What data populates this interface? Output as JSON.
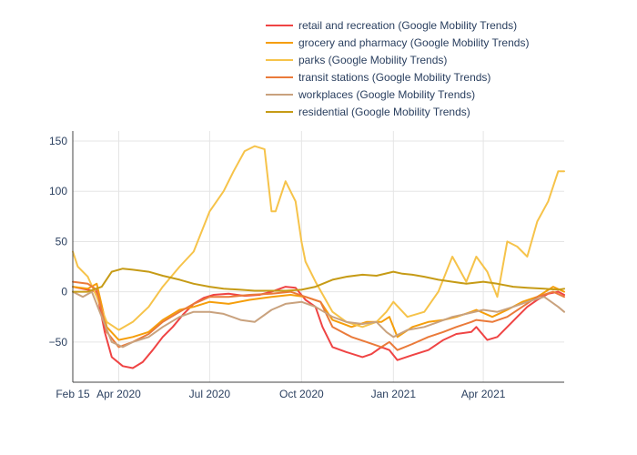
{
  "chart_data": {
    "type": "line",
    "title": "",
    "xlabel": "",
    "ylabel": "",
    "ylim": [
      -90,
      160
    ],
    "yticks": [
      150,
      100,
      50,
      0,
      -50
    ],
    "ytick_labels": [
      "150",
      "100",
      "50",
      "0",
      "−50"
    ],
    "xlim": [
      "2020-02-15",
      "2021-06-21"
    ],
    "xticks": [
      "2020-02-15",
      "2020-04-01",
      "2020-07-01",
      "2020-10-01",
      "2021-01-01",
      "2021-04-01"
    ],
    "xtick_labels": [
      "Feb 15",
      "Apr 2020",
      "Jul 2020",
      "Oct 2020",
      "Jan 2021",
      "Apr 2021"
    ],
    "grid": true,
    "legend_position": "top",
    "series": [
      {
        "name": "retail and recreation (Google Mobility Trends)",
        "color": "#ef4444",
        "x": [
          "2020-02-15",
          "2020-03-01",
          "2020-03-10",
          "2020-03-18",
          "2020-03-25",
          "2020-04-05",
          "2020-04-15",
          "2020-04-25",
          "2020-05-05",
          "2020-05-15",
          "2020-05-25",
          "2020-06-05",
          "2020-06-15",
          "2020-06-25",
          "2020-07-05",
          "2020-07-20",
          "2020-08-05",
          "2020-08-20",
          "2020-09-01",
          "2020-09-15",
          "2020-09-25",
          "2020-10-05",
          "2020-10-15",
          "2020-10-22",
          "2020-11-01",
          "2020-11-15",
          "2020-12-01",
          "2020-12-10",
          "2020-12-20",
          "2020-12-28",
          "2021-01-05",
          "2021-01-20",
          "2021-02-05",
          "2021-02-20",
          "2021-03-05",
          "2021-03-20",
          "2021-03-25",
          "2021-04-05",
          "2021-04-15",
          "2021-04-25",
          "2021-05-05",
          "2021-05-15",
          "2021-05-25",
          "2021-06-05",
          "2021-06-15",
          "2021-06-21"
        ],
        "y": [
          5,
          2,
          0,
          -40,
          -65,
          -74,
          -76,
          -70,
          -58,
          -45,
          -35,
          -22,
          -12,
          -6,
          -3,
          -2,
          -4,
          -3,
          0,
          5,
          4,
          -8,
          -15,
          -35,
          -55,
          -60,
          -65,
          -62,
          -55,
          -58,
          -68,
          -63,
          -58,
          -48,
          -42,
          -40,
          -35,
          -48,
          -45,
          -35,
          -25,
          -15,
          -8,
          -2,
          0,
          -3
        ]
      },
      {
        "name": "grocery and pharmacy (Google Mobility Trends)",
        "color": "#f59e0b",
        "x": [
          "2020-02-15",
          "2020-03-01",
          "2020-03-10",
          "2020-03-20",
          "2020-04-01",
          "2020-04-15",
          "2020-05-01",
          "2020-05-15",
          "2020-06-01",
          "2020-06-15",
          "2020-07-01",
          "2020-07-20",
          "2020-08-10",
          "2020-09-01",
          "2020-09-20",
          "2020-10-05",
          "2020-10-20",
          "2020-11-01",
          "2020-11-20",
          "2020-12-05",
          "2020-12-20",
          "2020-12-28",
          "2021-01-05",
          "2021-01-20",
          "2021-02-05",
          "2021-02-20",
          "2021-03-05",
          "2021-03-20",
          "2021-03-25",
          "2021-04-10",
          "2021-04-25",
          "2021-05-10",
          "2021-05-25",
          "2021-06-10",
          "2021-06-21"
        ],
        "y": [
          5,
          3,
          8,
          -35,
          -48,
          -45,
          -40,
          -28,
          -18,
          -15,
          -10,
          -12,
          -8,
          -5,
          -3,
          -5,
          -10,
          -28,
          -35,
          -30,
          -30,
          -25,
          -45,
          -35,
          -30,
          -28,
          -25,
          -20,
          -18,
          -25,
          -18,
          -10,
          -5,
          5,
          0
        ]
      },
      {
        "name": "parks (Google Mobility Trends)",
        "color": "#f6c34a",
        "x": [
          "2020-02-15",
          "2020-02-20",
          "2020-03-01",
          "2020-03-10",
          "2020-03-20",
          "2020-04-01",
          "2020-04-15",
          "2020-05-01",
          "2020-05-15",
          "2020-06-01",
          "2020-06-15",
          "2020-07-01",
          "2020-07-15",
          "2020-07-25",
          "2020-08-05",
          "2020-08-15",
          "2020-08-25",
          "2020-09-01",
          "2020-09-05",
          "2020-09-15",
          "2020-09-25",
          "2020-10-01",
          "2020-10-05",
          "2020-10-15",
          "2020-11-01",
          "2020-11-15",
          "2020-12-01",
          "2020-12-15",
          "2020-12-25",
          "2021-01-01",
          "2021-01-15",
          "2021-02-01",
          "2021-02-15",
          "2021-03-01",
          "2021-03-15",
          "2021-03-25",
          "2021-04-05",
          "2021-04-15",
          "2021-04-25",
          "2021-05-05",
          "2021-05-15",
          "2021-05-25",
          "2021-06-05",
          "2021-06-15",
          "2021-06-21"
        ],
        "y": [
          40,
          25,
          15,
          -5,
          -30,
          -38,
          -30,
          -15,
          5,
          25,
          40,
          80,
          100,
          120,
          140,
          145,
          142,
          80,
          80,
          110,
          90,
          50,
          30,
          10,
          -20,
          -30,
          -35,
          -30,
          -20,
          -10,
          -25,
          -20,
          0,
          35,
          10,
          35,
          20,
          -5,
          50,
          45,
          35,
          70,
          90,
          120,
          120
        ]
      },
      {
        "name": "transit stations (Google Mobility Trends)",
        "color": "#ea7a3a",
        "x": [
          "2020-02-15",
          "2020-03-01",
          "2020-03-10",
          "2020-03-20",
          "2020-04-01",
          "2020-04-15",
          "2020-05-01",
          "2020-05-15",
          "2020-06-01",
          "2020-06-15",
          "2020-07-01",
          "2020-07-20",
          "2020-08-10",
          "2020-09-01",
          "2020-09-20",
          "2020-10-05",
          "2020-10-20",
          "2020-11-01",
          "2020-11-20",
          "2020-12-05",
          "2020-12-20",
          "2020-12-28",
          "2021-01-05",
          "2021-01-20",
          "2021-02-05",
          "2021-02-20",
          "2021-03-05",
          "2021-03-20",
          "2021-03-25",
          "2021-04-10",
          "2021-04-25",
          "2021-05-10",
          "2021-05-25",
          "2021-06-10",
          "2021-06-21"
        ],
        "y": [
          10,
          8,
          2,
          -40,
          -55,
          -50,
          -42,
          -30,
          -20,
          -12,
          -5,
          -5,
          -3,
          -2,
          0,
          -5,
          -10,
          -35,
          -45,
          -50,
          -55,
          -50,
          -58,
          -52,
          -45,
          -40,
          -35,
          -30,
          -28,
          -30,
          -25,
          -15,
          -5,
          0,
          -5
        ]
      },
      {
        "name": "workplaces (Google Mobility Trends)",
        "color": "#c9a27e",
        "x": [
          "2020-02-15",
          "2020-02-25",
          "2020-03-05",
          "2020-03-15",
          "2020-03-25",
          "2020-04-05",
          "2020-04-15",
          "2020-05-01",
          "2020-05-15",
          "2020-06-01",
          "2020-06-15",
          "2020-07-01",
          "2020-07-15",
          "2020-08-01",
          "2020-08-15",
          "2020-09-01",
          "2020-09-15",
          "2020-10-01",
          "2020-10-15",
          "2020-11-01",
          "2020-11-15",
          "2020-12-01",
          "2020-12-15",
          "2020-12-25",
          "2021-01-01",
          "2021-01-15",
          "2021-02-01",
          "2021-02-15",
          "2021-03-01",
          "2021-03-15",
          "2021-04-01",
          "2021-04-15",
          "2021-05-01",
          "2021-05-15",
          "2021-06-01",
          "2021-06-15",
          "2021-06-21"
        ],
        "y": [
          0,
          -5,
          0,
          -25,
          -50,
          -55,
          -50,
          -45,
          -35,
          -25,
          -20,
          -20,
          -22,
          -28,
          -30,
          -18,
          -12,
          -10,
          -15,
          -25,
          -30,
          -32,
          -30,
          -40,
          -45,
          -38,
          -35,
          -30,
          -25,
          -22,
          -18,
          -20,
          -15,
          -10,
          -5,
          -15,
          -20
        ]
      },
      {
        "name": "residential (Google Mobility Trends)",
        "color": "#c69b16",
        "x": [
          "2020-02-15",
          "2020-03-01",
          "2020-03-15",
          "2020-03-25",
          "2020-04-05",
          "2020-04-15",
          "2020-05-01",
          "2020-05-15",
          "2020-06-01",
          "2020-06-15",
          "2020-07-01",
          "2020-07-15",
          "2020-08-01",
          "2020-08-15",
          "2020-09-01",
          "2020-09-15",
          "2020-10-01",
          "2020-10-15",
          "2020-11-01",
          "2020-11-15",
          "2020-12-01",
          "2020-12-15",
          "2021-01-01",
          "2021-01-10",
          "2021-01-20",
          "2021-02-01",
          "2021-02-15",
          "2021-03-01",
          "2021-03-15",
          "2021-04-01",
          "2021-04-15",
          "2021-05-01",
          "2021-05-15",
          "2021-06-01",
          "2021-06-15",
          "2021-06-21"
        ],
        "y": [
          0,
          0,
          5,
          20,
          23,
          22,
          20,
          16,
          12,
          8,
          5,
          3,
          2,
          1,
          1,
          1,
          2,
          5,
          12,
          15,
          17,
          16,
          20,
          18,
          17,
          15,
          12,
          10,
          8,
          10,
          8,
          5,
          4,
          3,
          2,
          3
        ]
      }
    ]
  }
}
